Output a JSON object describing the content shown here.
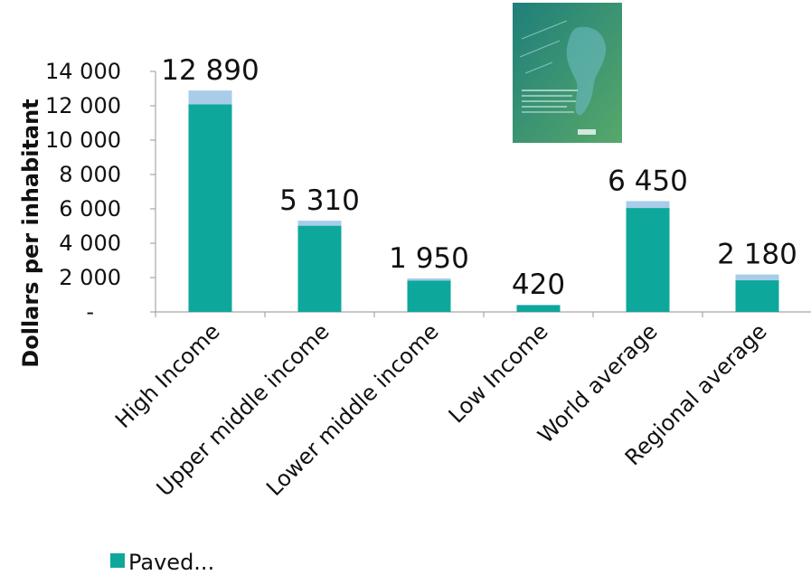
{
  "chart_data": {
    "type": "bar",
    "stacked": true,
    "categories": [
      "High Income",
      "Upper middle income",
      "Lower middle income",
      "Low Income",
      "World average",
      "Regional average"
    ],
    "series": [
      {
        "name": "Paved...",
        "color": "#0ea79c",
        "values": [
          12090,
          5020,
          1830,
          390,
          6050,
          1840
        ]
      },
      {
        "name": "",
        "color": "#a9cce9",
        "values": [
          800,
          290,
          120,
          30,
          400,
          340
        ]
      }
    ],
    "totals": [
      12890,
      5310,
      1950,
      420,
      6450,
      2180
    ],
    "total_labels": [
      "12 890",
      "5 310",
      "1 950",
      "420",
      "6 450",
      "2 180"
    ],
    "ylabel": "Dollars per inhabitant",
    "ylim": [
      0,
      14000
    ],
    "y_ticks": [
      0,
      2000,
      4000,
      6000,
      8000,
      10000,
      12000,
      14000
    ],
    "y_tick_labels": [
      "-",
      "2 000",
      "4 000",
      "6 000",
      "8 000",
      "10 000",
      "12 000",
      "14 000"
    ],
    "grid": false,
    "legend_position": "bottom-left",
    "legend": [
      {
        "label": "Paved...",
        "color": "#0ea79c"
      }
    ]
  }
}
